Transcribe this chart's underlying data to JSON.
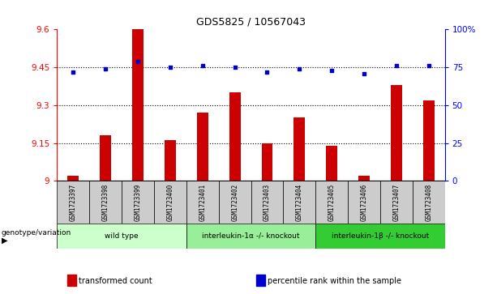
{
  "title": "GDS5825 / 10567043",
  "categories": [
    "GSM1723397",
    "GSM1723398",
    "GSM1723399",
    "GSM1723400",
    "GSM1723401",
    "GSM1723402",
    "GSM1723403",
    "GSM1723404",
    "GSM1723405",
    "GSM1723406",
    "GSM1723407",
    "GSM1723408"
  ],
  "bar_values": [
    9.02,
    9.18,
    9.6,
    9.16,
    9.27,
    9.35,
    9.15,
    9.25,
    9.14,
    9.02,
    9.38,
    9.32
  ],
  "dot_values": [
    72,
    74,
    79,
    75,
    76,
    75,
    72,
    74,
    73,
    71,
    76,
    76
  ],
  "bar_color": "#CC0000",
  "dot_color": "#0000CC",
  "ylim_left": [
    9.0,
    9.6
  ],
  "ylim_right": [
    0,
    100
  ],
  "yticks_left": [
    9.0,
    9.15,
    9.3,
    9.45,
    9.6
  ],
  "yticks_right": [
    0,
    25,
    50,
    75,
    100
  ],
  "ytick_labels_left": [
    "9",
    "9.15",
    "9.3",
    "9.45",
    "9.6"
  ],
  "ytick_labels_right": [
    "0",
    "25",
    "50",
    "75",
    "100%"
  ],
  "hline_values": [
    9.15,
    9.3,
    9.45
  ],
  "groups": [
    {
      "label": "wild type",
      "start": 0,
      "end": 3,
      "color": "#ccffcc"
    },
    {
      "label": "interleukin-1α -/- knockout",
      "start": 4,
      "end": 7,
      "color": "#99ee99"
    },
    {
      "label": "interleukin-1β -/- knockout",
      "start": 8,
      "end": 11,
      "color": "#33cc33"
    }
  ],
  "genotype_label": "genotype/variation",
  "legend_items": [
    {
      "label": "transformed count",
      "color": "#CC0000"
    },
    {
      "label": "percentile rank within the sample",
      "color": "#0000CC"
    }
  ],
  "bg_color": "#ffffff",
  "plot_bg_color": "#ffffff",
  "tick_cell_bg": "#cccccc",
  "bar_width": 0.35
}
